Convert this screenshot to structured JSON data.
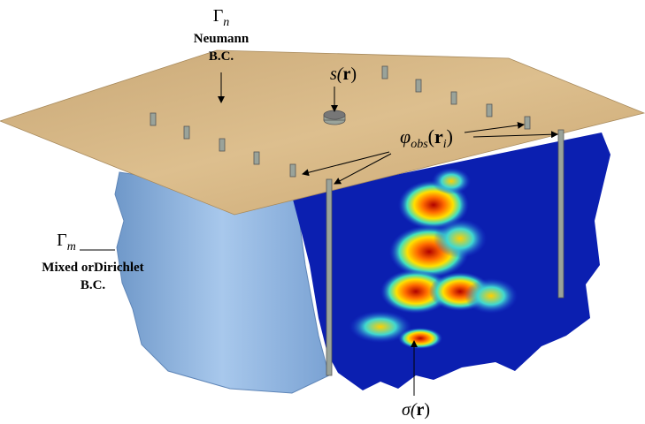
{
  "labels": {
    "gamma_n": {
      "symbol": "Γ",
      "subscript": "n",
      "lines": [
        "Neumann",
        "B.C."
      ]
    },
    "source": {
      "text": "s(",
      "bold": "r",
      "close": ")"
    },
    "phi_obs": {
      "symbol": "φ",
      "subscript": "obs",
      "open": "(",
      "bold": "r",
      "bold_subscript": "i",
      "close": ")"
    },
    "gamma_m": {
      "symbol": "Γ",
      "subscript": "m",
      "lines": [
        "Mixed orDirichlet",
        "B.C."
      ]
    },
    "sigma": {
      "symbol": "σ(",
      "bold": "r",
      "close": ")"
    }
  }
}
